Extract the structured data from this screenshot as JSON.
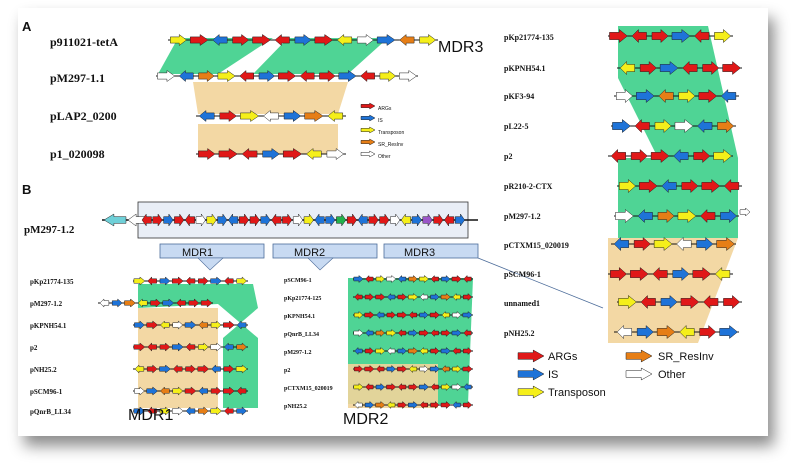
{
  "colors": {
    "ARGs": "#e01818",
    "IS": "#1e73d8",
    "Transposon": "#f5ef1a",
    "SR_ResInv": "#e67e16",
    "Other": "#ffffff",
    "green_band": "#3ccf8a",
    "tan_band": "#f2d49a",
    "mdr_box": "#c8daf2",
    "cyan": "#6fd0d8",
    "purple": "#9a55c8",
    "green_gene": "#22b14c"
  },
  "panel_a": {
    "label": "A",
    "title": "MDR3",
    "plasmids": [
      "p911021-tetA",
      "pM297-1.1",
      "pLAP2_0200",
      "p1_020098"
    ],
    "legend": [
      "ARGs",
      "IS",
      "Transposon",
      "SR_ResInv",
      "Other"
    ]
  },
  "panel_b": {
    "label": "B",
    "main_plasmid": "pM297-1.2",
    "regions": [
      "MDR1",
      "MDR2",
      "MDR3"
    ],
    "mdr1_plasmids": [
      "pKp21774-135",
      "pM297-1.2",
      "pKPNH54.1",
      "p2",
      "pNH25.2",
      "pSCM96-1",
      "pQnrB_LL34"
    ],
    "mdr1_caption": "MDR1",
    "mdr2_plasmids": [
      "pSCM96-1",
      "pKp21774-125",
      "pKPNH54.1",
      "pQnrB_LL34",
      "pM297-1.2",
      "p2",
      "pCTXM15_020019",
      "pNH25.2"
    ],
    "mdr2_caption": "MDR2"
  },
  "panel_c": {
    "plasmids": [
      "pKp21774-135",
      "pKPNH54.1",
      "pKF3-94",
      "pL22-5",
      "p2",
      "pR210-2-CTX",
      "pM297-1.2",
      "pCTXM15_020019",
      "pSCM96-1",
      "unnamed1",
      "pNH25.2"
    ]
  },
  "legend": {
    "items": [
      {
        "label": "ARGs",
        "color_key": "ARGs"
      },
      {
        "label": "SR_ResInv",
        "color_key": "SR_ResInv"
      },
      {
        "label": "IS",
        "color_key": "IS"
      },
      {
        "label": "Other",
        "color_key": "Other"
      },
      {
        "label": "Transposon",
        "color_key": "Transposon"
      }
    ]
  }
}
